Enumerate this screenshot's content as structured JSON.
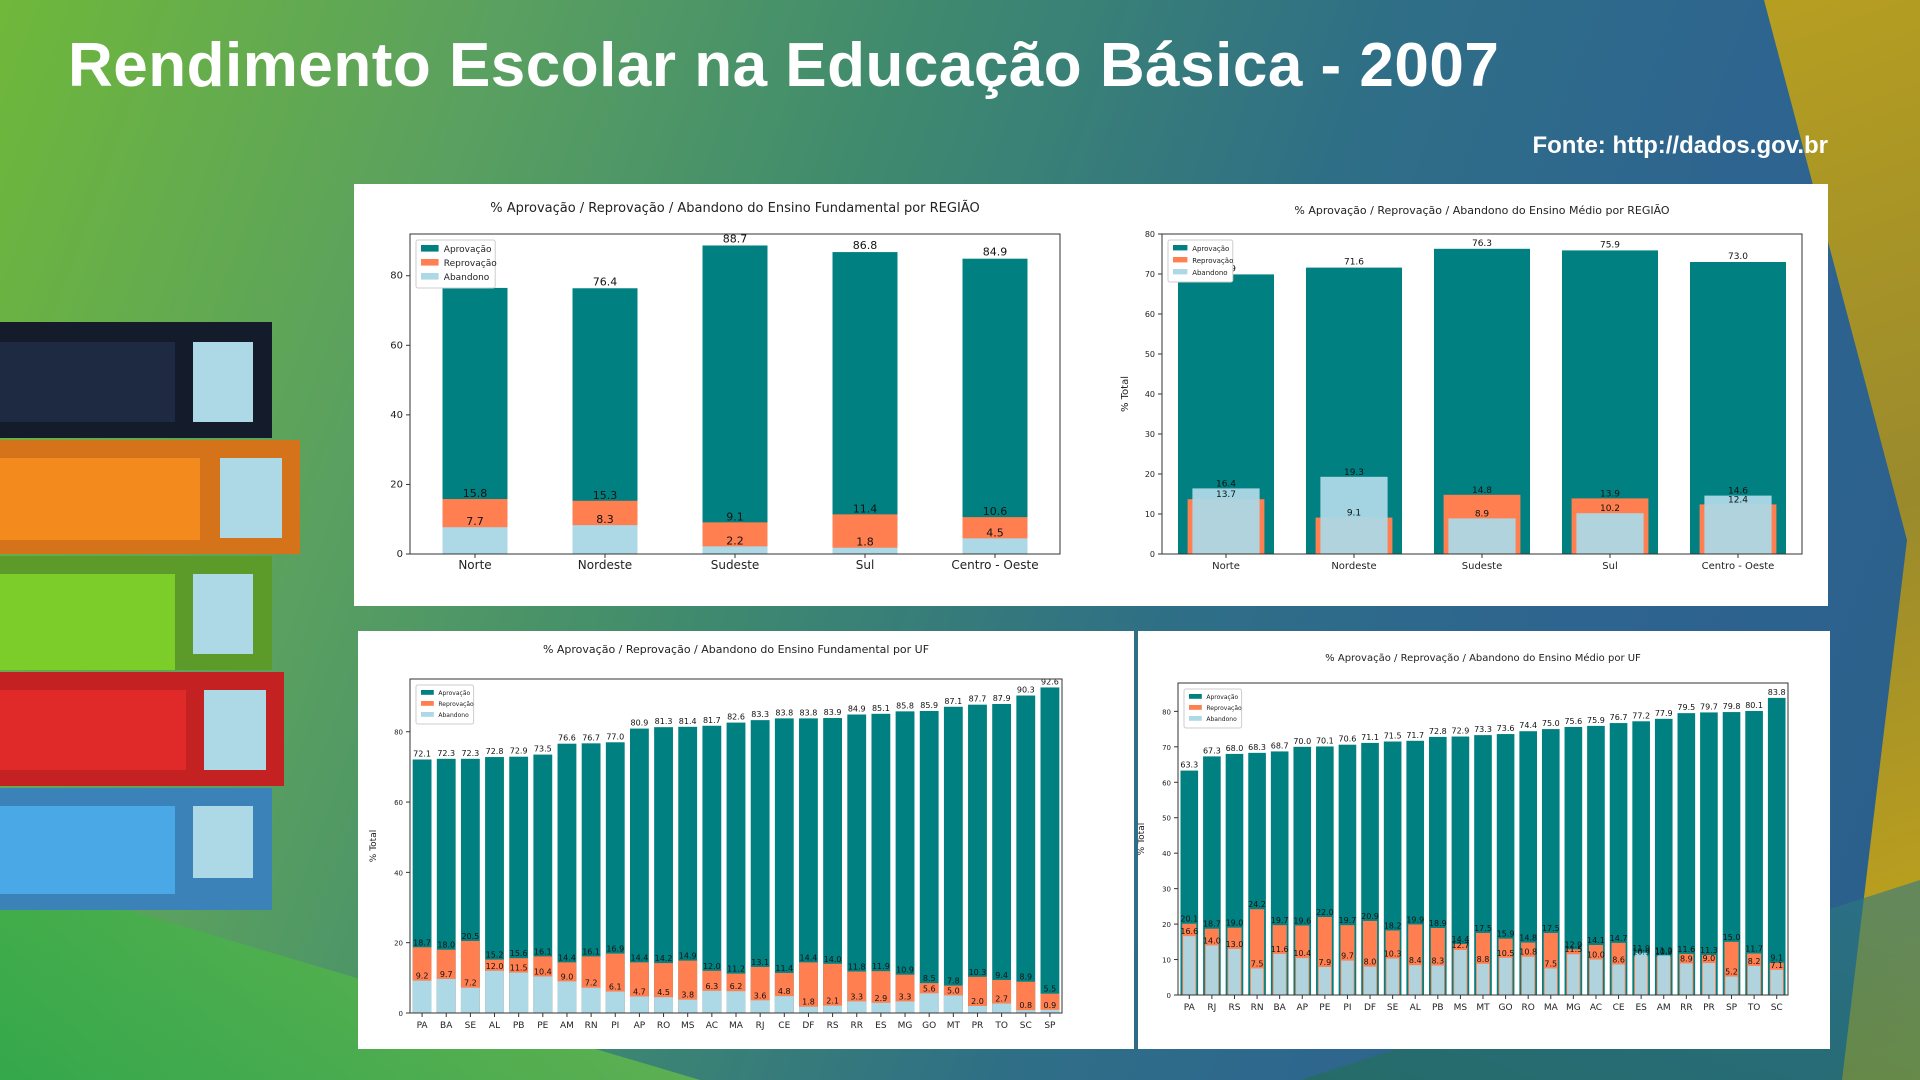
{
  "page": {
    "title": "Rendimento Escolar na Educação Básica - 2007",
    "source": "Fonte: http://dados.gov.br"
  },
  "legend_labels": [
    "Aprovação",
    "Reprovação",
    "Abandono"
  ],
  "colors": {
    "aprovacao": "#008080",
    "reprovacao": "#ff7f50",
    "abandono": "#add8e6"
  },
  "chart_data": [
    {
      "type": "bar",
      "title": "% Aprovação / Reprovação / Abandono do Ensino Fundamental por REGIÃO",
      "ylabel": "",
      "ylim": [
        0,
        92
      ],
      "yticks": [
        0,
        20,
        40,
        60,
        80
      ],
      "legend": "top-left",
      "bar_mode": "nested",
      "categories": [
        "Norte",
        "Nordeste",
        "Sudeste",
        "Sul",
        "Centro - Oeste"
      ],
      "series": [
        {
          "name": "Aprovação",
          "values": [
            76.5,
            76.4,
            88.7,
            86.8,
            84.9
          ]
        },
        {
          "name": "Reprovação",
          "values": [
            15.8,
            15.3,
            9.1,
            11.4,
            10.6
          ]
        },
        {
          "name": "Abandono",
          "values": [
            7.7,
            8.3,
            2.2,
            1.8,
            4.5
          ]
        }
      ]
    },
    {
      "type": "bar",
      "title": "% Aprovação / Reprovação / Abandono do Ensino Médio por REGIÃO",
      "ylabel": "% Total",
      "ylim": [
        0,
        80
      ],
      "yticks": [
        0,
        10,
        20,
        30,
        40,
        50,
        60,
        70,
        80
      ],
      "legend": "top-left",
      "bar_mode": "overlay",
      "categories": [
        "Norte",
        "Nordeste",
        "Sudeste",
        "Sul",
        "Centro - Oeste"
      ],
      "series": [
        {
          "name": "Aprovação",
          "values": [
            69.9,
            71.6,
            76.3,
            75.9,
            73.0
          ]
        },
        {
          "name": "Reprovação",
          "values": [
            13.7,
            9.1,
            14.8,
            13.9,
            12.4
          ]
        },
        {
          "name": "Abandono",
          "values": [
            16.4,
            19.3,
            8.9,
            10.2,
            14.6
          ]
        }
      ]
    },
    {
      "type": "bar",
      "title": "% Aprovação / Reprovação / Abandono do Ensino Fundamental por UF",
      "ylabel": "% Total",
      "ylim": [
        0,
        95
      ],
      "yticks": [
        0,
        20,
        40,
        60,
        80
      ],
      "legend": "top-left",
      "bar_mode": "nested",
      "categories": [
        "PA",
        "BA",
        "SE",
        "AL",
        "PB",
        "PE",
        "AM",
        "RN",
        "PI",
        "AP",
        "RO",
        "MS",
        "AC",
        "MA",
        "RJ",
        "CE",
        "DF",
        "RS",
        "RR",
        "ES",
        "MG",
        "GO",
        "MT",
        "PR",
        "TO",
        "SC",
        "SP"
      ],
      "series": [
        {
          "name": "Aprovação",
          "values": [
            72.1,
            72.3,
            72.3,
            72.8,
            72.9,
            73.5,
            76.6,
            76.7,
            77.0,
            80.9,
            81.3,
            81.4,
            81.7,
            82.6,
            83.3,
            83.8,
            83.8,
            83.9,
            84.9,
            85.1,
            85.8,
            85.9,
            87.1,
            87.7,
            87.9,
            90.3,
            92.6
          ]
        },
        {
          "name": "Reprovação",
          "values": [
            18.7,
            18.0,
            20.5,
            15.2,
            15.6,
            16.1,
            14.4,
            16.1,
            16.9,
            14.4,
            14.2,
            14.9,
            12.0,
            11.2,
            13.1,
            11.4,
            14.4,
            14.0,
            11.8,
            11.9,
            10.9,
            8.5,
            7.8,
            10.3,
            9.4,
            8.9,
            5.5
          ]
        },
        {
          "name": "Abandono",
          "values": [
            9.2,
            9.7,
            7.2,
            12.0,
            11.5,
            10.4,
            9.0,
            7.2,
            6.1,
            4.7,
            4.5,
            3.8,
            6.3,
            6.2,
            3.6,
            4.8,
            1.8,
            2.1,
            3.3,
            2.9,
            3.3,
            5.6,
            5.0,
            2.0,
            2.7,
            0.8,
            0.9
          ]
        }
      ]
    },
    {
      "type": "bar",
      "title": "% Aprovação / Reprovação / Abandono do Ensino Médio por UF",
      "ylabel": "% Total",
      "ylim": [
        0,
        88
      ],
      "yticks": [
        0,
        10,
        20,
        30,
        40,
        50,
        60,
        70,
        80
      ],
      "legend": "top-left",
      "bar_mode": "overlay",
      "categories": [
        "PA",
        "RJ",
        "RS",
        "RN",
        "BA",
        "AP",
        "PE",
        "PI",
        "DF",
        "SE",
        "AL",
        "PB",
        "MS",
        "MT",
        "GO",
        "RO",
        "MA",
        "MG",
        "AC",
        "CE",
        "ES",
        "AM",
        "RR",
        "PR",
        "SP",
        "TO",
        "SC"
      ],
      "series": [
        {
          "name": "Aprovação",
          "values": [
            63.3,
            67.3,
            68.0,
            68.3,
            68.7,
            70.0,
            70.1,
            70.6,
            71.1,
            71.5,
            71.7,
            72.8,
            72.9,
            73.3,
            73.6,
            74.4,
            75.0,
            75.6,
            75.9,
            76.7,
            77.2,
            77.9,
            79.5,
            79.7,
            79.8,
            80.1,
            83.8
          ]
        },
        {
          "name": "Reprovação",
          "values": [
            20.1,
            18.7,
            19.0,
            24.2,
            19.7,
            19.6,
            22.0,
            19.7,
            20.9,
            18.2,
            19.9,
            18.9,
            14.4,
            17.5,
            15.9,
            14.8,
            17.5,
            12.9,
            14.1,
            14.7,
            10.9,
            10.9,
            11.6,
            11.3,
            15.0,
            11.7,
            9.1
          ]
        },
        {
          "name": "Abandono",
          "values": [
            16.6,
            14.0,
            13.0,
            7.5,
            11.6,
            10.4,
            7.9,
            9.7,
            8.0,
            10.3,
            8.4,
            8.3,
            12.7,
            8.8,
            10.5,
            10.8,
            7.5,
            11.5,
            10.0,
            8.6,
            11.9,
            11.2,
            8.9,
            9.0,
            5.2,
            8.2,
            7.1
          ]
        }
      ]
    }
  ]
}
